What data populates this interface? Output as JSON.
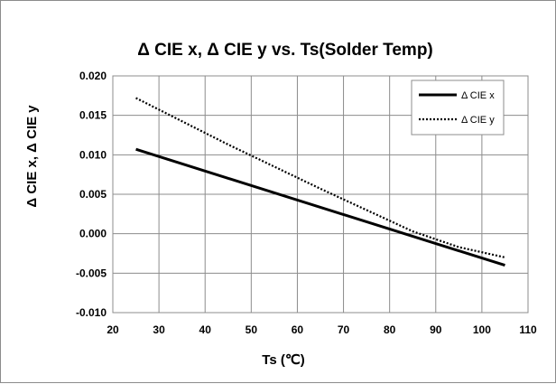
{
  "chart_data": {
    "type": "line",
    "title": "Δ CIE x, Δ CIE y vs. Ts(Solder Temp)",
    "xlabel": "Ts (℃)",
    "ylabel": "Δ CIE x, Δ CIE y",
    "xlim": [
      20,
      110
    ],
    "ylim": [
      -0.01,
      0.02
    ],
    "xticks": [
      "20",
      "30",
      "40",
      "50",
      "60",
      "70",
      "80",
      "90",
      "100",
      "110"
    ],
    "yticks": [
      "0.020",
      "0.015",
      "0.010",
      "0.005",
      "0.000",
      "-0.005",
      "-0.010"
    ],
    "grid": true,
    "legend_position": "top-right",
    "series": [
      {
        "name": "Δ CIE x",
        "style": "solid",
        "color": "#000000",
        "points": [
          [
            25,
            0.0107
          ],
          [
            105,
            -0.004
          ]
        ]
      },
      {
        "name": "Δ CIE y",
        "style": "dotted",
        "color": "#000000",
        "points": [
          [
            25,
            0.0172
          ],
          [
            45,
            0.0113
          ],
          [
            65,
            0.0057
          ],
          [
            85,
            0.0003
          ],
          [
            95,
            -0.0017
          ],
          [
            105,
            -0.003
          ]
        ]
      }
    ]
  }
}
